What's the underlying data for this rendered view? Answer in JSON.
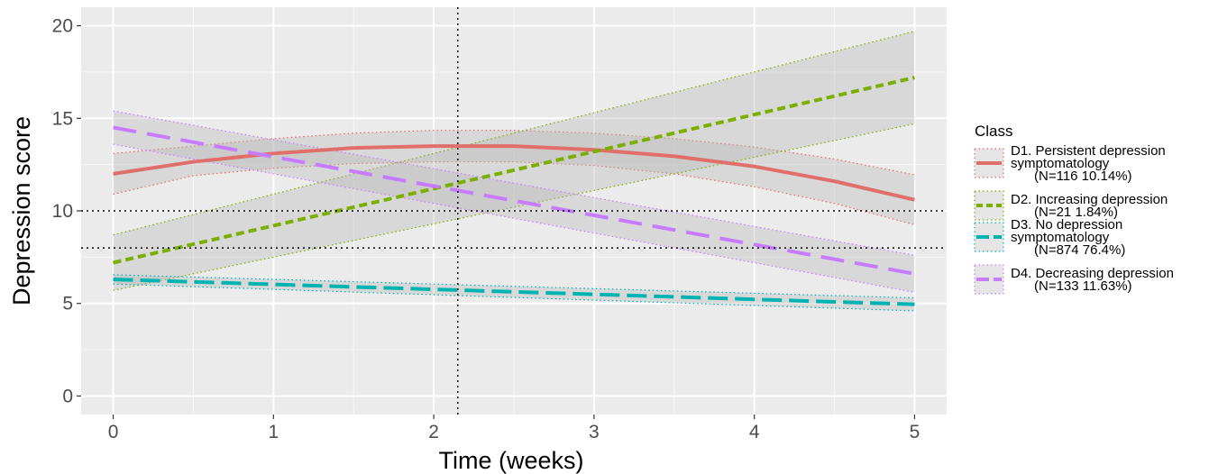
{
  "chart_data": {
    "type": "line",
    "xlabel": "Time (weeks)",
    "ylabel": "Depression score",
    "xlim": [
      -0.2,
      5.2
    ],
    "ylim": [
      -1.0,
      21.0
    ],
    "x_ticks": [
      0,
      1,
      2,
      3,
      4,
      5
    ],
    "y_ticks": [
      0,
      5,
      10,
      15,
      20
    ],
    "grid": true,
    "reference_lines": {
      "vertical_x": [
        2.15
      ],
      "horizontal_y": [
        10,
        8
      ]
    },
    "legend": {
      "title": "Class",
      "placement": "right",
      "entries": [
        {
          "lines": [
            "D1. Persistent depression",
            " symptomatology",
            "(N=116 10.14%)"
          ]
        },
        {
          "lines": [
            "D2. Increasing depression",
            "(N=21 1.84%)"
          ]
        },
        {
          "lines": [
            "D3. No depression",
            " symptomatology",
            "(N=874 76.4%)"
          ]
        },
        {
          "lines": [
            "D4. Decreasing depression",
            "(N=133 11.63%)"
          ]
        }
      ]
    },
    "series": [
      {
        "name": "D1. Persistent depression symptomatology (N=116 10.14%)",
        "color": "#E06F6B",
        "dash": "solid",
        "x": [
          0,
          0.5,
          1,
          1.5,
          2,
          2.5,
          3,
          3.5,
          4,
          4.5,
          5
        ],
        "y": [
          12.0,
          12.65,
          13.1,
          13.4,
          13.5,
          13.5,
          13.3,
          12.95,
          12.4,
          11.6,
          10.6
        ],
        "lower": [
          10.9,
          11.9,
          12.3,
          12.55,
          12.65,
          12.65,
          12.45,
          12.0,
          11.3,
          10.4,
          9.25
        ],
        "upper": [
          13.1,
          13.5,
          13.9,
          14.2,
          14.35,
          14.35,
          14.2,
          13.9,
          13.45,
          12.8,
          11.95
        ]
      },
      {
        "name": "D2. Increasing depression (N=21 1.84%)",
        "color": "#7CAE00",
        "dash": "short",
        "x": [
          0,
          5
        ],
        "y": [
          7.2,
          17.2
        ],
        "lower": [
          5.7,
          14.7
        ],
        "upper": [
          8.7,
          19.7
        ]
      },
      {
        "name": "D3. No depression symptomatology (N=874 76.4%)",
        "color": "#00B3B3",
        "dash": "long",
        "x": [
          0,
          5
        ],
        "y": [
          6.3,
          4.95
        ],
        "lower": [
          6.05,
          4.6
        ],
        "upper": [
          6.55,
          5.3
        ]
      },
      {
        "name": "D4. Decreasing depression (N=133 11.63%)",
        "color": "#C77CFF",
        "dash": "longer",
        "x": [
          0,
          5
        ],
        "y": [
          14.5,
          6.6
        ],
        "lower": [
          13.6,
          5.6
        ],
        "upper": [
          15.4,
          7.6
        ]
      }
    ]
  }
}
